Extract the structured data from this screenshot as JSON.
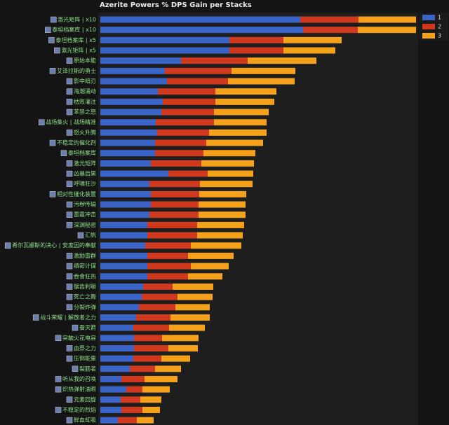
{
  "chart_data": {
    "type": "stacked-bar",
    "orientation": "horizontal",
    "title": "Azerite Powers % DPS Gain per Stacks",
    "categories": [
      "激光矩阵 | x10",
      "泰坦档案库 | x10",
      "泰坦档案库 | x5",
      "激光矩阵 | x5",
      "原始本能",
      "艾泽拉斯的勇士",
      "影中暗刃",
      "海潮涌动",
      "枯败灌注",
      "苯禁之怒",
      "战场集火 | 战场精准",
      "怒火升腾",
      "不稳定的催化剂",
      "泰坦档案库",
      "激光矩阵",
      "凶暴后果",
      "呼啸狂沙",
      "相对性催化装置",
      "污秽传输",
      "雷霆冲击",
      "深渊秘密",
      "汇帆",
      "希尔瓦娜斯的决心 | 安度因的奉献",
      "激励雷群",
      "缜密计谋",
      "吞食狂热",
      "锯齿利颚",
      "死亡之舞",
      "分裂炸弹",
      "战斗荣耀 | 解放者之力",
      "蚕灭箭",
      "突触火花电容",
      "血祭之力",
      "压倒能量",
      "裂肠者",
      "听从我的召唤",
      "炽热弹射油眼",
      "元素回旋",
      "不稳定的烈焰",
      "鲜血虹吸"
    ],
    "series": [
      {
        "name": "1",
        "color": "#3a64c8",
        "values": [
          28.5,
          28.9,
          18.4,
          18.4,
          11.5,
          9.2,
          9.5,
          8.2,
          8.9,
          8.7,
          7.9,
          8.1,
          7.8,
          7.8,
          7.2,
          9.7,
          7.0,
          7.2,
          7.2,
          7.0,
          6.7,
          6.7,
          6.4,
          6.7,
          6.7,
          6.7,
          6.1,
          5.9,
          5.5,
          5.1,
          4.7,
          4.8,
          4.8,
          4.7,
          4.2,
          3.0,
          3.7,
          2.9,
          3.0,
          2.5
        ]
      },
      {
        "name": "2",
        "color": "#d0391e",
        "values": [
          8.3,
          7.8,
          7.7,
          7.7,
          9.5,
          9.5,
          8.7,
          8.2,
          7.5,
          7.5,
          8.3,
          7.4,
          7.3,
          6.9,
          7.2,
          5.6,
          7.2,
          6.9,
          6.8,
          7.0,
          7.1,
          7.1,
          6.5,
          5.8,
          6.2,
          5.8,
          4.2,
          5.1,
          5.2,
          4.9,
          5.1,
          4.0,
          4.9,
          4.0,
          3.6,
          3.3,
          2.3,
          2.8,
          3.0,
          2.7
        ]
      },
      {
        "name": "3",
        "color": "#f5a11a",
        "values": [
          8.2,
          8.3,
          8.3,
          7.4,
          9.8,
          9.1,
          9.5,
          8.7,
          8.4,
          7.8,
          7.5,
          8.2,
          8.1,
          7.4,
          7.5,
          6.5,
          7.5,
          6.7,
          6.7,
          6.7,
          6.7,
          6.5,
          7.2,
          6.5,
          5.4,
          4.9,
          5.8,
          5.0,
          4.9,
          5.6,
          5.1,
          5.2,
          4.2,
          4.1,
          3.7,
          4.7,
          3.9,
          3.0,
          2.5,
          2.4
        ]
      }
    ]
  }
}
